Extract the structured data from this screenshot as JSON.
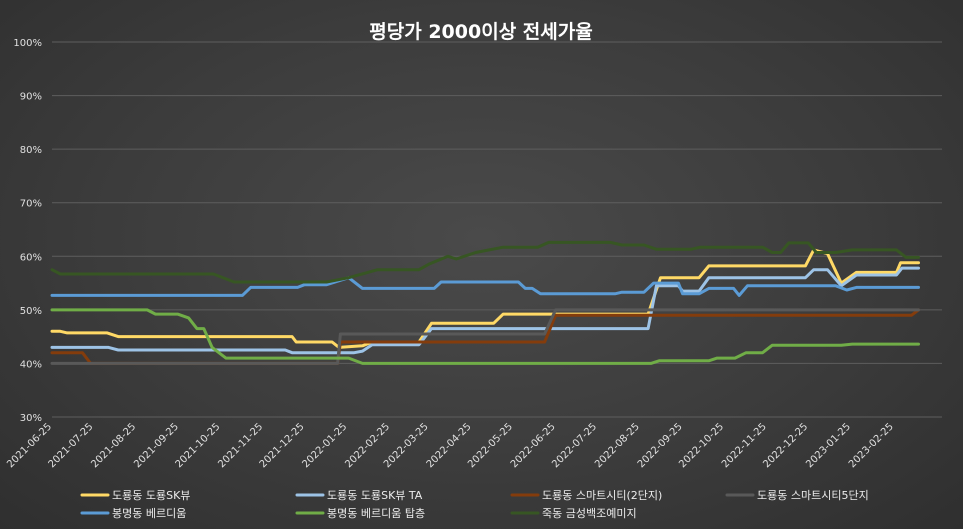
{
  "chart_data": {
    "type": "line",
    "title": "평당가 2000이상 전세가율",
    "xlabel": "",
    "ylabel": "",
    "ylim": [
      0.3,
      1.0
    ],
    "ytick_values": [
      0.3,
      0.4,
      0.5,
      0.6,
      0.7,
      0.8,
      0.9,
      1.0
    ],
    "ytick_labels": [
      "30%",
      "40%",
      "50%",
      "60%",
      "70%",
      "80%",
      "90%",
      "100%"
    ],
    "xlim": [
      "2021-06-25",
      "2023-04-01"
    ],
    "x_ticks": [
      "2021-06-25",
      "2021-07-25",
      "2021-08-25",
      "2021-09-25",
      "2021-10-25",
      "2021-11-25",
      "2021-12-25",
      "2022-01-25",
      "2022-02-25",
      "2022-03-25",
      "2022-04-25",
      "2022-05-25",
      "2022-06-25",
      "2022-07-25",
      "2022-08-25",
      "2022-09-25",
      "2022-10-25",
      "2022-11-25",
      "2022-12-25",
      "2023-01-25",
      "2023-02-25"
    ],
    "grid": true,
    "legend_position": "bottom",
    "background": "#3a3a3a",
    "series": [
      {
        "name": "도룡동 도룡SK뷰",
        "color": "#ffd966",
        "points": [
          [
            "2021-06-25",
            0.46
          ],
          [
            "2021-07-01",
            0.46
          ],
          [
            "2021-07-06",
            0.457
          ],
          [
            "2021-08-04",
            0.457
          ],
          [
            "2021-08-12",
            0.45
          ],
          [
            "2021-12-16",
            0.45
          ],
          [
            "2021-12-19",
            0.44
          ],
          [
            "2022-01-14",
            0.44
          ],
          [
            "2022-01-19",
            0.43
          ],
          [
            "2022-02-05",
            0.433
          ],
          [
            "2022-02-12",
            0.44
          ],
          [
            "2022-03-18",
            0.44
          ],
          [
            "2022-03-27",
            0.475
          ],
          [
            "2022-05-11",
            0.475
          ],
          [
            "2022-05-18",
            0.492
          ],
          [
            "2022-08-31",
            0.492
          ],
          [
            "2022-09-09",
            0.56
          ],
          [
            "2022-10-07",
            0.56
          ],
          [
            "2022-10-14",
            0.582
          ],
          [
            "2022-12-23",
            0.582
          ],
          [
            "2022-12-29",
            0.612
          ],
          [
            "2023-01-08",
            0.605
          ],
          [
            "2023-01-18",
            0.55
          ],
          [
            "2023-01-29",
            0.57
          ],
          [
            "2023-02-27",
            0.57
          ],
          [
            "2023-03-02",
            0.588
          ],
          [
            "2023-03-15",
            0.588
          ]
        ]
      },
      {
        "name": "도룡동 도룡SK뷰 TA",
        "color": "#9dc3e6",
        "points": [
          [
            "2021-06-25",
            0.43
          ],
          [
            "2021-08-05",
            0.43
          ],
          [
            "2021-08-12",
            0.425
          ],
          [
            "2021-12-11",
            0.425
          ],
          [
            "2021-12-16",
            0.42
          ],
          [
            "2022-01-30",
            0.42
          ],
          [
            "2022-02-05",
            0.423
          ],
          [
            "2022-02-12",
            0.435
          ],
          [
            "2022-03-18",
            0.435
          ],
          [
            "2022-03-27",
            0.465
          ],
          [
            "2022-08-31",
            0.465
          ],
          [
            "2022-09-06",
            0.545
          ],
          [
            "2022-09-22",
            0.545
          ],
          [
            "2022-09-25",
            0.535
          ],
          [
            "2022-10-07",
            0.535
          ],
          [
            "2022-10-14",
            0.56
          ],
          [
            "2022-12-23",
            0.56
          ],
          [
            "2022-12-29",
            0.575
          ],
          [
            "2023-01-08",
            0.575
          ],
          [
            "2023-01-18",
            0.545
          ],
          [
            "2023-01-29",
            0.565
          ],
          [
            "2023-02-27",
            0.565
          ],
          [
            "2023-03-03",
            0.578
          ],
          [
            "2023-03-15",
            0.578
          ]
        ]
      },
      {
        "name": "도룡동 스마트시티(2단지)",
        "color": "#843c0c",
        "points": [
          [
            "2021-06-25",
            0.42
          ],
          [
            "2021-07-17",
            0.42
          ],
          [
            "2021-07-23",
            0.4
          ],
          [
            "2022-01-18",
            0.4
          ],
          [
            "2022-01-20",
            0.44
          ],
          [
            "2022-06-17",
            0.44
          ],
          [
            "2022-06-25",
            0.49
          ],
          [
            "2023-03-10",
            0.49
          ],
          [
            "2023-03-15",
            0.5
          ]
        ]
      },
      {
        "name": "도룡동 스마트시티5단지",
        "color": "#595959",
        "points": [
          [
            "2021-06-25",
            0.4
          ],
          [
            "2022-01-18",
            0.4
          ],
          [
            "2022-01-20",
            0.455
          ],
          [
            "2022-06-17",
            0.455
          ],
          [
            "2022-06-25",
            0.5
          ],
          [
            "2023-03-15",
            0.5
          ]
        ]
      },
      {
        "name": "봉명동 베르디움",
        "color": "#5b9bd5",
        "points": [
          [
            "2021-06-25",
            0.527
          ],
          [
            "2021-11-10",
            0.527
          ],
          [
            "2021-11-16",
            0.542
          ],
          [
            "2021-12-20",
            0.542
          ],
          [
            "2021-12-25",
            0.547
          ],
          [
            "2022-01-10",
            0.547
          ],
          [
            "2022-01-26",
            0.56
          ],
          [
            "2022-02-05",
            0.54
          ],
          [
            "2022-03-29",
            0.54
          ],
          [
            "2022-04-03",
            0.552
          ],
          [
            "2022-05-29",
            0.552
          ],
          [
            "2022-06-03",
            0.54
          ],
          [
            "2022-06-08",
            0.54
          ],
          [
            "2022-06-14",
            0.53
          ],
          [
            "2022-08-07",
            0.53
          ],
          [
            "2022-08-12",
            0.533
          ],
          [
            "2022-08-28",
            0.533
          ],
          [
            "2022-09-04",
            0.55
          ],
          [
            "2022-09-22",
            0.55
          ],
          [
            "2022-09-25",
            0.53
          ],
          [
            "2022-10-07",
            0.53
          ],
          [
            "2022-10-14",
            0.54
          ],
          [
            "2022-11-01",
            0.54
          ],
          [
            "2022-11-05",
            0.527
          ],
          [
            "2022-11-11",
            0.545
          ],
          [
            "2022-12-25",
            0.545
          ],
          [
            "2022-12-29",
            0.545
          ],
          [
            "2023-01-14",
            0.545
          ],
          [
            "2023-01-22",
            0.537
          ],
          [
            "2023-01-29",
            0.542
          ],
          [
            "2023-03-15",
            0.542
          ]
        ]
      },
      {
        "name": "봉명동 베르디움 탑층",
        "color": "#70ad47",
        "points": [
          [
            "2021-06-25",
            0.5
          ],
          [
            "2021-09-02",
            0.5
          ],
          [
            "2021-09-08",
            0.492
          ],
          [
            "2021-09-24",
            0.492
          ],
          [
            "2021-10-02",
            0.485
          ],
          [
            "2021-10-08",
            0.465
          ],
          [
            "2021-10-13",
            0.465
          ],
          [
            "2021-10-19",
            0.43
          ],
          [
            "2021-10-29",
            0.41
          ],
          [
            "2022-01-26",
            0.41
          ],
          [
            "2022-02-05",
            0.4
          ],
          [
            "2022-09-02",
            0.4
          ],
          [
            "2022-09-08",
            0.405
          ],
          [
            "2022-10-14",
            0.405
          ],
          [
            "2022-10-20",
            0.41
          ],
          [
            "2022-11-02",
            0.41
          ],
          [
            "2022-11-10",
            0.42
          ],
          [
            "2022-11-22",
            0.42
          ],
          [
            "2022-11-29",
            0.434
          ],
          [
            "2023-01-18",
            0.434
          ],
          [
            "2023-01-26",
            0.436
          ],
          [
            "2023-03-15",
            0.436
          ]
        ]
      },
      {
        "name": "죽동 금성백조예미지",
        "color": "#375623",
        "points": [
          [
            "2021-06-25",
            0.575
          ],
          [
            "2021-07-01",
            0.567
          ],
          [
            "2021-10-20",
            0.567
          ],
          [
            "2021-11-04",
            0.552
          ],
          [
            "2022-01-10",
            0.552
          ],
          [
            "2022-01-26",
            0.56
          ],
          [
            "2022-02-16",
            0.575
          ],
          [
            "2022-03-18",
            0.575
          ],
          [
            "2022-03-25",
            0.585
          ],
          [
            "2022-04-08",
            0.6
          ],
          [
            "2022-04-14",
            0.595
          ],
          [
            "2022-04-28",
            0.607
          ],
          [
            "2022-05-18",
            0.617
          ],
          [
            "2022-06-12",
            0.617
          ],
          [
            "2022-06-20",
            0.626
          ],
          [
            "2022-08-04",
            0.626
          ],
          [
            "2022-08-12",
            0.621
          ],
          [
            "2022-08-28",
            0.621
          ],
          [
            "2022-09-06",
            0.613
          ],
          [
            "2022-10-01",
            0.613
          ],
          [
            "2022-10-08",
            0.617
          ],
          [
            "2022-11-22",
            0.617
          ],
          [
            "2022-11-29",
            0.607
          ],
          [
            "2022-12-05",
            0.607
          ],
          [
            "2022-12-11",
            0.625
          ],
          [
            "2022-12-25",
            0.625
          ],
          [
            "2022-12-31",
            0.607
          ],
          [
            "2023-01-14",
            0.607
          ],
          [
            "2023-01-26",
            0.612
          ],
          [
            "2023-02-27",
            0.612
          ],
          [
            "2023-03-06",
            0.598
          ],
          [
            "2023-03-15",
            0.598
          ]
        ]
      }
    ]
  }
}
